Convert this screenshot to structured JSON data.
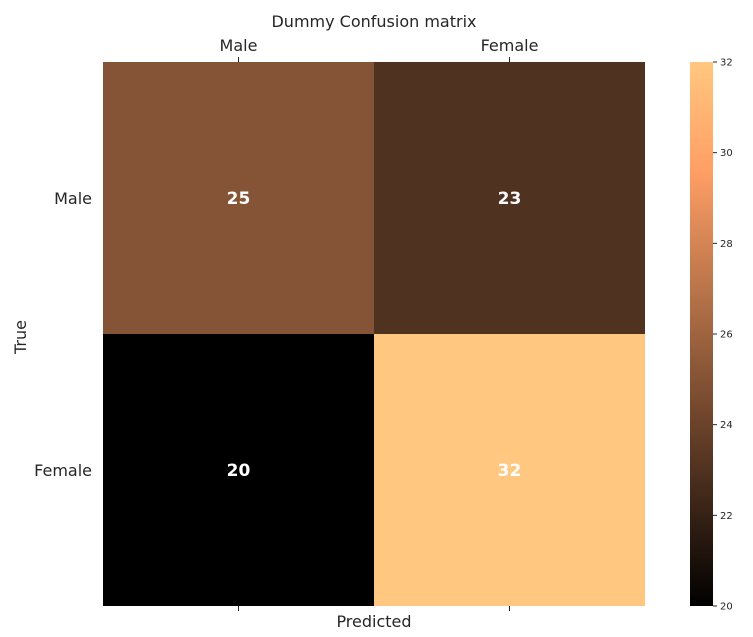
{
  "chart_data": {
    "type": "heatmap",
    "title": "Dummy Confusion matrix",
    "xlabel": "Predicted",
    "ylabel": "True",
    "x_categories": [
      "Male",
      "Female"
    ],
    "y_categories": [
      "Male",
      "Female"
    ],
    "values": [
      [
        25,
        23
      ],
      [
        20,
        32
      ]
    ],
    "colormap": "copper",
    "colorbar": {
      "range": [
        20,
        32
      ],
      "ticks": [
        20,
        22,
        24,
        26,
        28,
        30,
        32
      ]
    },
    "x_tick_position": "top",
    "annotations": true,
    "grid": false
  }
}
